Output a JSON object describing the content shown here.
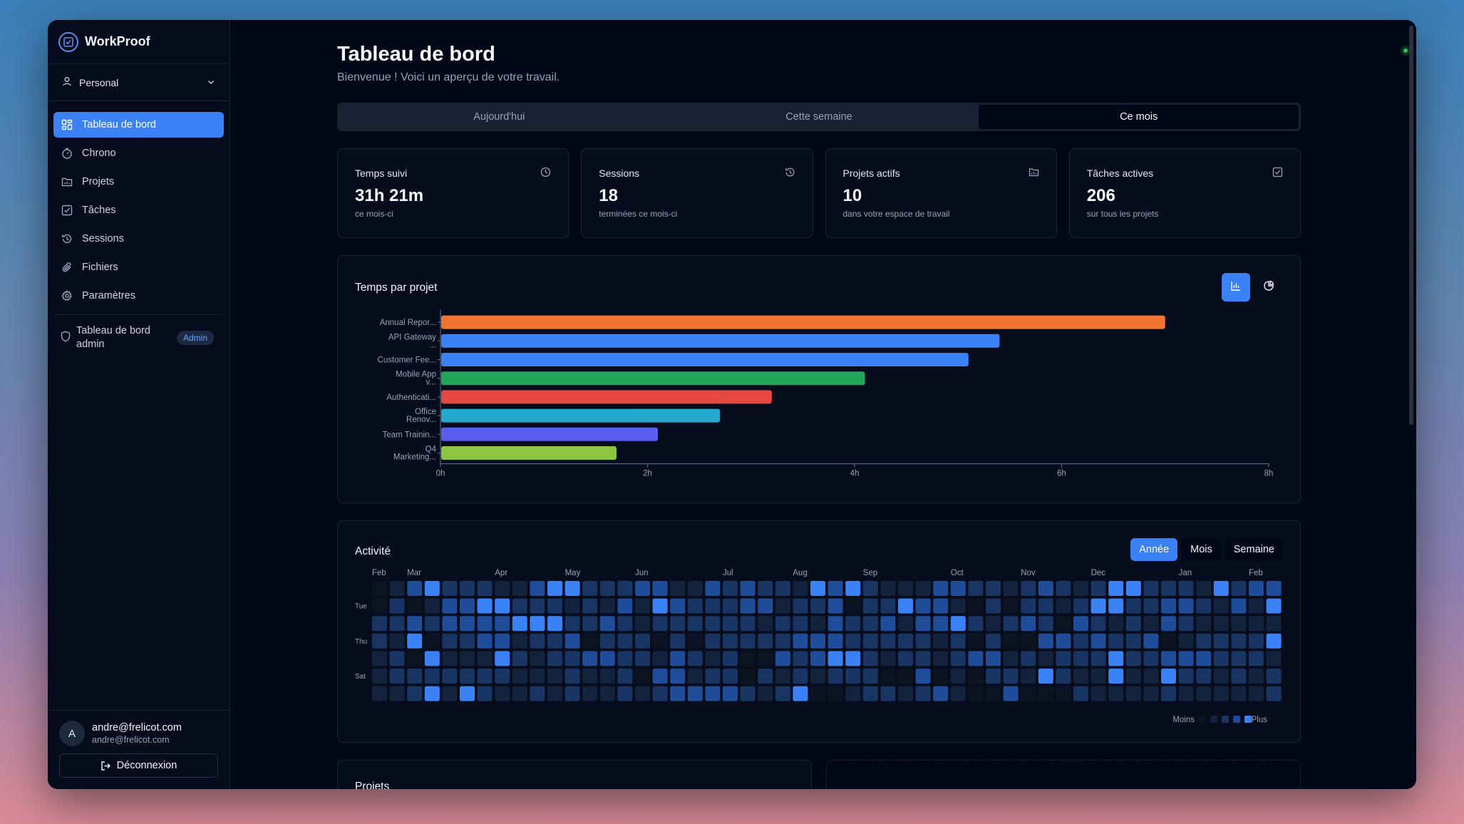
{
  "app": {
    "name": "WorkProof"
  },
  "workspace": {
    "label": "Personal"
  },
  "nav": {
    "items": [
      {
        "label": "Tableau de bord",
        "icon": "grid-icon"
      },
      {
        "label": "Chrono",
        "icon": "timer-icon"
      },
      {
        "label": "Projets",
        "icon": "folder-icon"
      },
      {
        "label": "Tâches",
        "icon": "checkbox-icon"
      },
      {
        "label": "Sessions",
        "icon": "history-icon"
      },
      {
        "label": "Fichiers",
        "icon": "paperclip-icon"
      },
      {
        "label": "Paramètres",
        "icon": "gear-icon"
      }
    ],
    "admin": {
      "label_line1": "Tableau de bord",
      "label_line2": "admin",
      "badge": "Admin"
    }
  },
  "user": {
    "initial": "A",
    "name": "andre@frelicot.com",
    "email": "andre@frelicot.com",
    "logout": "Déconnexion"
  },
  "page": {
    "title": "Tableau de bord",
    "subtitle": "Bienvenue ! Voici un aperçu de votre travail."
  },
  "tabs": [
    "Aujourd'hui",
    "Cette semaine",
    "Ce mois"
  ],
  "stats": [
    {
      "label": "Temps suivi",
      "value": "31h 21m",
      "sub": "ce mois-ci",
      "icon": "clock-icon"
    },
    {
      "label": "Sessions",
      "value": "18",
      "sub": "terminées ce mois-ci",
      "icon": "history-icon"
    },
    {
      "label": "Projets actifs",
      "value": "10",
      "sub": "dans votre espace de travail",
      "icon": "folder-icon"
    },
    {
      "label": "Tâches actives",
      "value": "206",
      "sub": "sur tous les projets",
      "icon": "checkbox-icon"
    }
  ],
  "time_chart": {
    "title": "Temps par projet",
    "toggle_icons": [
      "bar-chart-icon",
      "pie-chart-icon"
    ]
  },
  "chart_data": {
    "type": "bar",
    "orientation": "horizontal",
    "categories": [
      [
        "Annual Repor..."
      ],
      [
        "API Gateway",
        "..."
      ],
      [
        "Customer Fee..."
      ],
      [
        "Mobile App",
        "v..."
      ],
      [
        "Authenticati..."
      ],
      [
        "Office",
        "Renov..."
      ],
      [
        "Team Trainin..."
      ],
      [
        "Q4",
        "Marketing..."
      ]
    ],
    "values": [
      7.0,
      5.4,
      5.1,
      4.1,
      3.2,
      2.7,
      2.1,
      1.7
    ],
    "colors": [
      "#f07330",
      "#3b82f6",
      "#3b82f6",
      "#22a55b",
      "#e5483f",
      "#23a9cc",
      "#5a5ff0",
      "#8cc63f"
    ],
    "xlim": [
      0,
      8
    ],
    "xticks": [
      "0h",
      "2h",
      "4h",
      "6h",
      "8h"
    ]
  },
  "activity": {
    "title": "Activité",
    "periods": [
      "Année",
      "Mois",
      "Semaine"
    ],
    "months": [
      "Feb",
      "Mar",
      "Apr",
      "May",
      "Jun",
      "Jul",
      "Aug",
      "Sep",
      "Oct",
      "Nov",
      "Dec",
      "Jan",
      "Feb"
    ],
    "month_week_index": [
      0,
      2,
      7,
      11,
      15,
      20,
      24,
      28,
      33,
      37,
      41,
      46,
      50
    ],
    "day_labels": [
      "",
      "Tue",
      "",
      "Thu",
      "",
      "Sat",
      ""
    ],
    "legend_less": "Moins",
    "legend_more": "Plus",
    "level_colors": [
      "#0c1322",
      "#13233e",
      "#183563",
      "#1f4d99",
      "#3b82f6"
    ],
    "weeks": 52,
    "grid": [
      "0134222113442223311323221434211133221232124422214233",
      "0201334422212131432223312230224331020221244223321314",
      "2232333344422321222222122132231334212320321213211111",
      "2140223312230222020222223332222212020033232230122224",
      "1204111421223322132120032344212212331212224223332221",
      "1222222211121120331220212122200301022142114114221212",
      "1124142112121121233332124001221231003000211112111112"
    ]
  },
  "projects_section": {
    "title": "Projets"
  }
}
